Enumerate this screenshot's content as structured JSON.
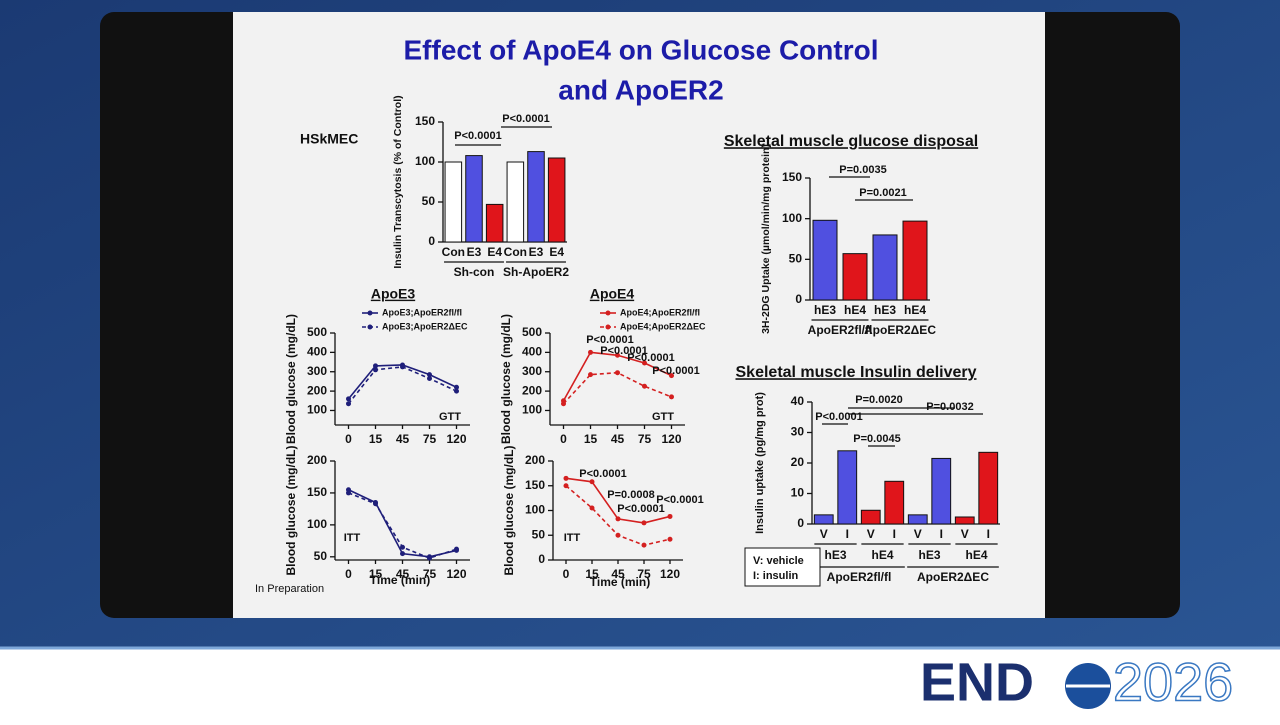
{
  "slide": {
    "title_lines": [
      "Effect of ApoE4 on Glucose Control",
      "and ApoER2"
    ],
    "note": "In Preparation"
  },
  "logo": {
    "text_left": "END",
    "text_right": "2026"
  },
  "chart_data": [
    {
      "type": "bar",
      "title": "HSkMEC",
      "ylabel": "Insulin Transcytosis (% of Control)",
      "categories": [
        "Con",
        "E3",
        "E4",
        "Con",
        "E3",
        "E4"
      ],
      "values": [
        100,
        108,
        47,
        100,
        113,
        105
      ],
      "colors": [
        "#ffffff",
        "#5050e0",
        "#e0151b",
        "#ffffff",
        "#5050e0",
        "#e0151b"
      ],
      "groups": [
        "Sh-con",
        "Sh-ApoER2"
      ],
      "annotations": [
        "P<0.0001",
        "P<0.0001"
      ],
      "ylim": [
        0,
        150
      ],
      "yticks": [
        0,
        50,
        100,
        150
      ]
    },
    {
      "type": "line",
      "title": "ApoE3",
      "ylabel": "Blood glucose (mg/dL)",
      "categories": [
        "0",
        "15",
        "45",
        "75",
        "120"
      ],
      "series": [
        {
          "name": "ApoE3;ApoER2fl/fl",
          "color": "#1f1f7a",
          "dash": false,
          "values": [
            160,
            330,
            335,
            285,
            220
          ]
        },
        {
          "name": "ApoE3;ApoER2ΔEC",
          "color": "#1f1f7a",
          "dash": true,
          "values": [
            135,
            310,
            325,
            265,
            200
          ]
        }
      ],
      "annotations": [
        "GTT"
      ],
      "ylim": [
        25,
        500
      ],
      "yticks": [
        100,
        200,
        300,
        400,
        500
      ]
    },
    {
      "type": "line",
      "title": "ApoE4",
      "ylabel": "Blood glucose (mg/dL)",
      "categories": [
        "0",
        "15",
        "45",
        "75",
        "120"
      ],
      "series": [
        {
          "name": "ApoE4;ApoER2fl/fl",
          "color": "#d42020",
          "dash": false,
          "values": [
            150,
            400,
            385,
            345,
            280
          ]
        },
        {
          "name": "ApoE4;ApoER2ΔEC",
          "color": "#d42020",
          "dash": true,
          "values": [
            135,
            285,
            295,
            225,
            170
          ]
        }
      ],
      "annotations": [
        "GTT",
        "P<0.0001",
        "P<0.0001",
        "P<0.0001",
        "P<0.0001"
      ],
      "ylim": [
        25,
        500
      ],
      "yticks": [
        100,
        200,
        300,
        400,
        500
      ]
    },
    {
      "type": "line",
      "ylabel": "Blood glucose (mg/dL)",
      "xlabel": "Time (min)",
      "categories": [
        "0",
        "15",
        "45",
        "75",
        "120"
      ],
      "series": [
        {
          "color": "#1f1f7a",
          "dash": false,
          "values": [
            155,
            135,
            55,
            50,
            60
          ]
        },
        {
          "color": "#1f1f7a",
          "dash": true,
          "values": [
            150,
            133,
            65,
            48,
            62
          ]
        }
      ],
      "annotations": [
        "ITT"
      ],
      "ylim": [
        45,
        200
      ],
      "yticks": [
        50,
        100,
        150,
        200
      ]
    },
    {
      "type": "line",
      "ylabel": "Blood glucose (mg/dL)",
      "xlabel": "Time (min)",
      "categories": [
        "0",
        "15",
        "45",
        "75",
        "120"
      ],
      "series": [
        {
          "color": "#d42020",
          "dash": false,
          "values": [
            165,
            158,
            83,
            75,
            88
          ]
        },
        {
          "color": "#d42020",
          "dash": true,
          "values": [
            150,
            105,
            50,
            30,
            42
          ]
        }
      ],
      "annotations": [
        "ITT",
        "P<0.0001",
        "P=0.0008",
        "P<0.0001",
        "P<0.0001"
      ],
      "ylim": [
        0,
        200
      ],
      "yticks": [
        0,
        50,
        100,
        150,
        200
      ]
    },
    {
      "type": "bar",
      "title": "Skeletal muscle glucose disposal",
      "ylabel": "3H-2DG Uptake (µmol/min/mg protein)",
      "categories": [
        "hE3",
        "hE4",
        "hE3",
        "hE4"
      ],
      "values": [
        98,
        57,
        80,
        97
      ],
      "colors": [
        "#5050e0",
        "#e0151b",
        "#5050e0",
        "#e0151b"
      ],
      "groups": [
        "ApoER2fl/fl",
        "ApoER2ΔEC"
      ],
      "annotations": [
        "P=0.0035",
        "P=0.0021"
      ],
      "ylim": [
        0,
        150
      ],
      "yticks": [
        0,
        50,
        100,
        150
      ]
    },
    {
      "type": "bar",
      "title": "Skeletal muscle Insulin delivery",
      "ylabel": "Insulin uptake (pg/mg prot)",
      "categories": [
        "V",
        "I",
        "V",
        "I",
        "V",
        "I",
        "V",
        "I"
      ],
      "values": [
        3,
        24,
        4.5,
        14,
        3,
        21.5,
        2.3,
        23.5
      ],
      "colors": [
        "#5050e0",
        "#5050e0",
        "#e0151b",
        "#e0151b",
        "#5050e0",
        "#5050e0",
        "#e0151b",
        "#e0151b"
      ],
      "subgroups": [
        "hE3",
        "hE4",
        "hE3",
        "hE4"
      ],
      "groups": [
        "ApoER2fl/fl",
        "ApoER2ΔEC"
      ],
      "legend_text": [
        "V: vehicle",
        "I: insulin"
      ],
      "annotations": [
        "P<0.0001",
        "P=0.0020",
        "P=0.0045",
        "P=0.0032"
      ],
      "ylim": [
        0,
        40
      ],
      "yticks": [
        0,
        10,
        20,
        30,
        40
      ]
    }
  ]
}
